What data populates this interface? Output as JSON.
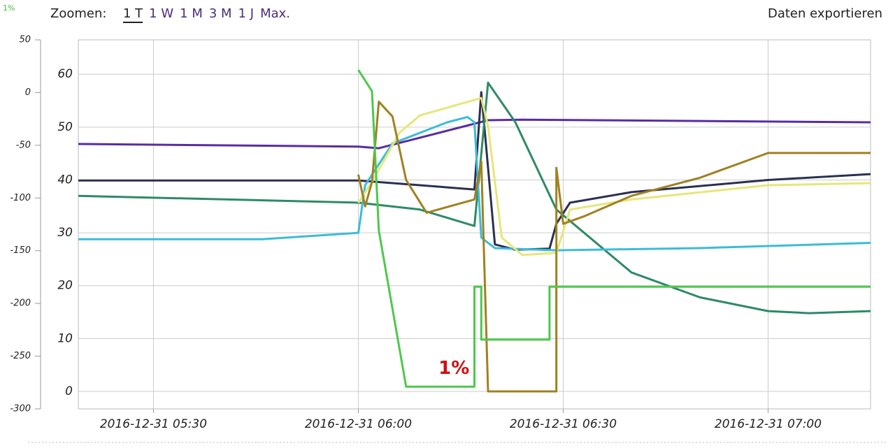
{
  "corner_label": "1%",
  "toolbar": {
    "label": "Zoomen:",
    "buttons": [
      "1 T",
      "1 W",
      "1 M",
      "3 M",
      "1 J",
      "Max."
    ],
    "export": "Daten exportieren"
  },
  "chart_data": {
    "type": "line",
    "xlim": [
      "2016-12-31 05:19",
      "2016-12-31 07:15"
    ],
    "xticks": [
      "2016-12-31 05:30",
      "2016-12-31 06:00",
      "2016-12-31 06:30",
      "2016-12-31 07:00"
    ],
    "ylim": [
      -3.3,
      66.5
    ],
    "yticks": [
      0,
      10,
      20,
      30,
      40,
      50,
      60
    ],
    "y2lim": [
      -300,
      50
    ],
    "y2ticks": [
      50,
      0,
      -50,
      -100,
      -150,
      -200,
      -250,
      -300
    ],
    "grid": true,
    "annotations": [
      {
        "text": "1%",
        "x": "2016-12-31 06:14",
        "y": 4.3
      }
    ],
    "series": [
      {
        "color": "#5a2ca0",
        "x": [
          "2016-12-31 05:19",
          "2016-12-31 06:00",
          "2016-12-31 06:03",
          "2016-12-31 06:19",
          "2016-12-31 06:24",
          "2016-12-31 07:15"
        ],
        "values": [
          46.8,
          46.3,
          46.0,
          51.3,
          51.4,
          50.9
        ]
      },
      {
        "color": "#2a3050",
        "x": [
          "2016-12-31 05:19",
          "2016-12-31 06:00",
          "2016-12-31 06:09",
          "2016-12-31 06:17",
          "2016-12-31 06:18",
          "2016-12-31 06:19",
          "2016-12-31 06:20",
          "2016-12-31 06:23",
          "2016-12-31 06:28",
          "2016-12-31 06:29",
          "2016-12-31 06:31",
          "2016-12-31 06:40",
          "2016-12-31 07:00",
          "2016-12-31 07:15"
        ],
        "values": [
          39.9,
          39.9,
          39.0,
          38.2,
          56.6,
          42.3,
          27.8,
          26.8,
          27.0,
          31.7,
          35.7,
          37.7,
          40.0,
          41.1
        ]
      },
      {
        "color": "#2e8a66",
        "x": [
          "2016-12-31 05:19",
          "2016-12-31 06:00",
          "2016-12-31 06:09",
          "2016-12-31 06:17",
          "2016-12-31 06:19",
          "2016-12-31 06:23",
          "2016-12-31 06:29",
          "2016-12-31 06:40",
          "2016-12-31 06:50",
          "2016-12-31 07:00",
          "2016-12-31 07:06",
          "2016-12-31 07:15"
        ],
        "values": [
          37.0,
          35.7,
          34.4,
          31.3,
          58.4,
          50.9,
          34.4,
          22.5,
          17.8,
          15.2,
          14.8,
          15.2
        ]
      },
      {
        "color": "#3bbcd8",
        "x": [
          "2016-12-31 05:19",
          "2016-12-31 05:46",
          "2016-12-31 06:00",
          "2016-12-31 06:01",
          "2016-12-31 06:05",
          "2016-12-31 06:13",
          "2016-12-31 06:16",
          "2016-12-31 06:17",
          "2016-12-31 06:18",
          "2016-12-31 06:20",
          "2016-12-31 06:29",
          "2016-12-31 06:50",
          "2016-12-31 07:15"
        ],
        "values": [
          28.8,
          28.8,
          30.0,
          39.0,
          46.9,
          50.9,
          51.9,
          50.9,
          29.1,
          27.1,
          26.7,
          27.1,
          28.1
        ]
      },
      {
        "color": "#e6e67a",
        "x": [
          "2016-12-31 06:00",
          "2016-12-31 06:02",
          "2016-12-31 06:06",
          "2016-12-31 06:09",
          "2016-12-31 06:18",
          "2016-12-31 06:19",
          "2016-12-31 06:21",
          "2016-12-31 06:24",
          "2016-12-31 06:29",
          "2016-12-31 06:31",
          "2016-12-31 06:40",
          "2016-12-31 07:00",
          "2016-12-31 07:15"
        ],
        "values": [
          35.7,
          39.6,
          48.9,
          52.2,
          55.5,
          50.2,
          29.1,
          25.8,
          26.2,
          34.4,
          36.3,
          39.0,
          39.4
        ]
      },
      {
        "color": "#a08020",
        "x": [
          "2016-12-31 06:00",
          "2016-12-31 06:01",
          "2016-12-31 06:02",
          "2016-12-31 06:03",
          "2016-12-31 06:05",
          "2016-12-31 06:07",
          "2016-12-31 06:10",
          "2016-12-31 06:17",
          "2016-12-31 06:18",
          "2016-12-31 06:19",
          "2016-12-31 06:29",
          "2016-12-31 06:29",
          "2016-12-31 06:30",
          "2016-12-31 06:33",
          "2016-12-31 06:40",
          "2016-12-31 06:50",
          "2016-12-31 07:00",
          "2016-12-31 07:15"
        ],
        "values": [
          41.0,
          35.0,
          39.6,
          54.8,
          52.0,
          40.0,
          33.8,
          36.3,
          43.5,
          0,
          0,
          42.3,
          31.7,
          33.1,
          37.0,
          40.4,
          45.1,
          45.1
        ]
      },
      {
        "color": "#4cc94c",
        "x": [
          "2016-12-31 06:00",
          "2016-12-31 06:02",
          "2016-12-31 06:03",
          "2016-12-31 06:07",
          "2016-12-31 06:17",
          "2016-12-31 06:17",
          "2016-12-31 06:18",
          "2016-12-31 06:18",
          "2016-12-31 06:28",
          "2016-12-31 06:28",
          "2016-12-31 07:15"
        ],
        "values": [
          60.8,
          56.8,
          30.4,
          0.9,
          0.9,
          19.8,
          19.8,
          9.8,
          9.8,
          19.8,
          19.8
        ]
      }
    ]
  }
}
